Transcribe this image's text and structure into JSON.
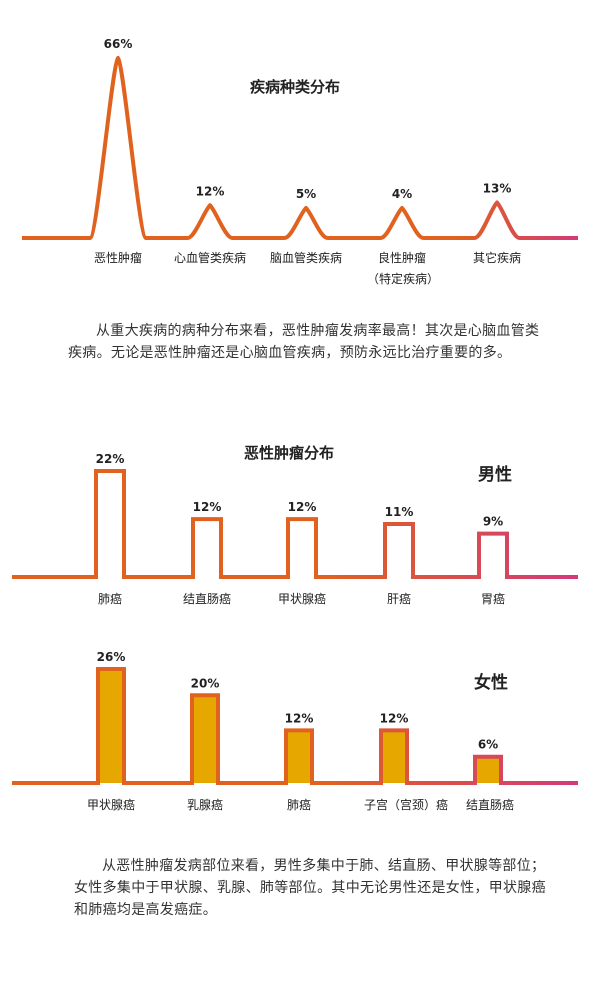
{
  "chart_data": [
    {
      "type": "line",
      "title": "疾病种类分布",
      "categories": [
        "恶性肿瘤",
        "心血管类疾病",
        "脑血管类疾病",
        "良性肿瘤",
        "其它疾病"
      ],
      "category_notes": [
        "",
        "",
        "",
        "（特定疾病）",
        ""
      ],
      "values": [
        66,
        12,
        5,
        4,
        13
      ],
      "value_labels": [
        "66%",
        "12%",
        "5%",
        "4%",
        "13%"
      ],
      "unit": "%",
      "ylim": [
        0,
        70
      ],
      "grid": false
    },
    {
      "type": "bar",
      "title": "恶性肿瘤分布",
      "group_label": "男性",
      "categories": [
        "肺癌",
        "结直肠癌",
        "甲状腺癌",
        "肝癌",
        "胃癌"
      ],
      "values": [
        22,
        12,
        12,
        11,
        9
      ],
      "value_labels": [
        "22%",
        "12%",
        "12%",
        "11%",
        "9%"
      ],
      "unit": "%",
      "ylim": [
        0,
        25
      ],
      "grid": false
    },
    {
      "type": "bar",
      "group_label": "女性",
      "categories": [
        "甲状腺癌",
        "乳腺癌",
        "肺癌",
        "子宫（宫颈）癌",
        "结直肠癌"
      ],
      "values": [
        26,
        20,
        12,
        12,
        6
      ],
      "value_labels": [
        "26%",
        "20%",
        "12%",
        "12%",
        "6%"
      ],
      "unit": "%",
      "ylim": [
        0,
        30
      ],
      "grid": false
    }
  ],
  "text": {
    "para1": "从重大疾病的病种分布来看，恶性肿瘤发病率最高！其次是心脑血管类疾病。无论是恶性肿瘤还是心脑血管疾病，预防永远比治疗重要的多。",
    "para2": "从恶性肿瘤发病部位来看，男性多集中于肺、结直肠、甲状腺等部位；女性多集中于甲状腺、乳腺、肺等部位。其中无论男性还是女性，甲状腺癌和肺癌均是高发癌症。"
  },
  "colors": {
    "line_orange": "#e0621e",
    "line_pink": "#d23a7a",
    "fill_yellow": "#f7cf12",
    "fill_yellow_dark": "#e6a800"
  }
}
